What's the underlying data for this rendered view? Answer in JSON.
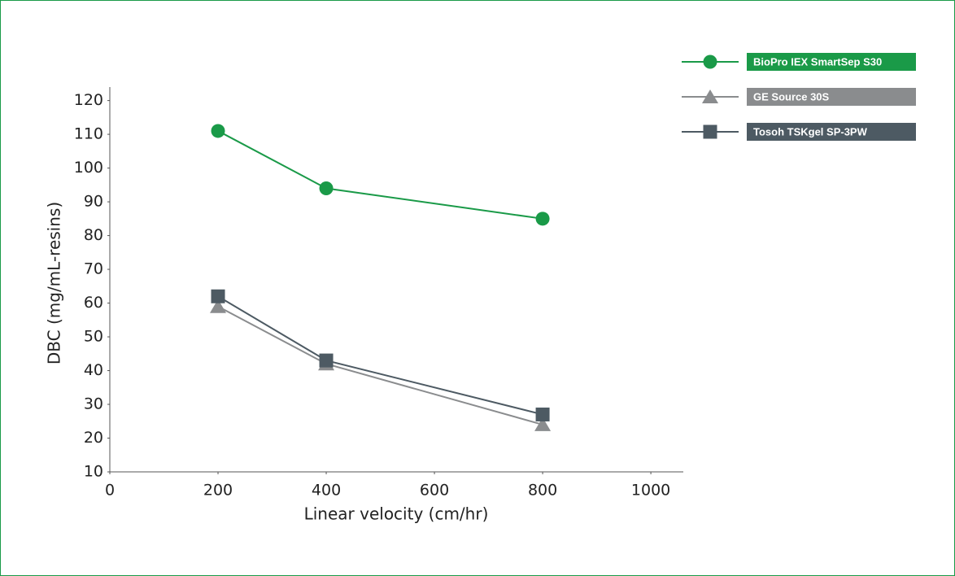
{
  "chart_data": {
    "type": "line",
    "x_label": "Linear velocity (cm/hr)",
    "y_label": "DBC (mg/mL-resins)",
    "xlim": [
      0,
      1060
    ],
    "xticks": [
      0,
      200,
      400,
      600,
      800,
      1000
    ],
    "ylim": [
      10,
      124
    ],
    "yticks": [
      10,
      20,
      30,
      40,
      50,
      60,
      70,
      80,
      90,
      100,
      110,
      120
    ],
    "grid": false,
    "legend": "top-right",
    "series": [
      {
        "name": "BioPro IEX SmartSep S30",
        "color": "#1a9a48",
        "marker": "circle",
        "x": [
          200,
          400,
          800
        ],
        "values": [
          111,
          94,
          85
        ]
      },
      {
        "name": "GE Source 30S",
        "color": "#8a8c8e",
        "marker": "triangle",
        "x": [
          200,
          400,
          800
        ],
        "values": [
          59,
          42,
          24
        ]
      },
      {
        "name": "Tosoh TSKgel SP-3PW",
        "color": "#4d5a63",
        "marker": "square",
        "x": [
          200,
          400,
          800
        ],
        "values": [
          62,
          43,
          27
        ]
      }
    ]
  }
}
